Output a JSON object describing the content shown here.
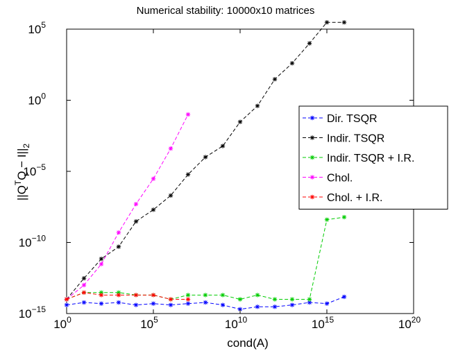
{
  "chart_data": {
    "type": "line",
    "title": "Numerical stability: 10000x10 matrices",
    "xlabel": "cond(A)",
    "ylabel": "||Q^TQ − I||_2",
    "x_scale": "log",
    "y_scale": "log",
    "xlim": [
      1,
      1e+20
    ],
    "ylim": [
      1e-15,
      100000.0
    ],
    "x_ticks": [
      {
        "mant": "10",
        "exp": "0"
      },
      {
        "mant": "10",
        "exp": "5"
      },
      {
        "mant": "10",
        "exp": "10"
      },
      {
        "mant": "10",
        "exp": "15"
      },
      {
        "mant": "10",
        "exp": "20"
      }
    ],
    "y_ticks": [
      {
        "mant": "10",
        "exp": "−15"
      },
      {
        "mant": "10",
        "exp": "−10"
      },
      {
        "mant": "10",
        "exp": "−5"
      },
      {
        "mant": "10",
        "exp": "0"
      },
      {
        "mant": "10",
        "exp": "5"
      }
    ],
    "grid": false,
    "legend_position": "right",
    "series": [
      {
        "name": "Dir. TSQR",
        "color": "#0000ff",
        "x": [
          1,
          10,
          100,
          1000,
          10000,
          100000,
          1000000,
          10000000,
          100000000,
          1000000000,
          10000000000,
          100000000000,
          1000000000000,
          10000000000000,
          100000000000000,
          1000000000000000,
          10000000000000000
        ],
        "y": [
          4e-15,
          6e-15,
          5e-15,
          6e-15,
          4e-15,
          5e-15,
          4e-15,
          5e-15,
          6e-15,
          4e-15,
          2e-15,
          3e-15,
          3e-15,
          4e-15,
          6e-15,
          5e-15,
          1.5e-14
        ]
      },
      {
        "name": "Indir. TSQR",
        "color": "#000000",
        "x": [
          1,
          10,
          100,
          1000,
          10000,
          100000,
          1000000,
          10000000,
          100000000,
          1000000000,
          10000000000,
          100000000000,
          1000000000000,
          10000000000000,
          100000000000000,
          1000000000000000,
          10000000000000000
        ],
        "y": [
          1e-14,
          3e-13,
          7e-12,
          5e-11,
          3e-09,
          2e-08,
          2e-07,
          6e-06,
          0.0001,
          0.0006,
          0.03,
          0.4,
          30,
          400,
          10000.0,
          300000.0,
          300000.0
        ]
      },
      {
        "name": "Indir. TSQR + I.R.",
        "color": "#00cc00",
        "x": [
          1,
          10,
          100,
          1000,
          10000,
          100000,
          1000000,
          10000000,
          100000000,
          1000000000,
          10000000000,
          100000000000,
          1000000000000,
          10000000000000,
          100000000000000,
          1000000000000000,
          10000000000000000
        ],
        "y": [
          1e-14,
          3e-14,
          3e-14,
          3e-14,
          2e-14,
          2e-14,
          1e-14,
          2e-14,
          2e-14,
          2e-14,
          1e-14,
          2e-14,
          1e-14,
          1e-14,
          1e-14,
          4e-09,
          6e-09
        ]
      },
      {
        "name": "Chol.",
        "color": "#ff00ff",
        "x": [
          1,
          10,
          100,
          1000,
          10000,
          100000,
          1000000,
          10000000
        ],
        "y": [
          1e-14,
          1e-13,
          3e-12,
          5e-10,
          5e-08,
          3e-06,
          0.0004,
          0.1
        ]
      },
      {
        "name": "Chol. + I.R.",
        "color": "#ff0000",
        "x": [
          1,
          10,
          100,
          1000,
          10000,
          100000,
          1000000,
          10000000
        ],
        "y": [
          1e-14,
          3e-14,
          2e-14,
          2e-14,
          2e-14,
          2e-14,
          1e-14,
          1e-14
        ]
      }
    ]
  }
}
